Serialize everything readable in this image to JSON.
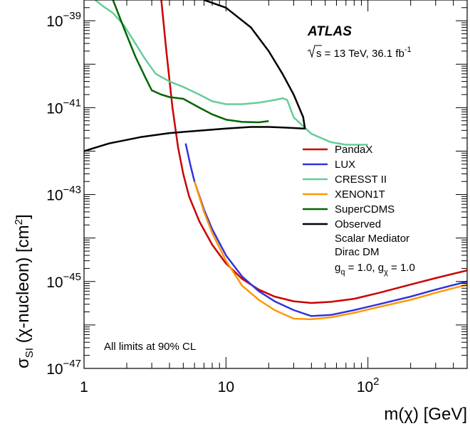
{
  "chart_data": {
    "type": "line",
    "xlabel": "m(χ) [GeV]",
    "ylabel": "σ_SI (χ-nucleon) [cm²]",
    "x_scale": "log",
    "y_scale": "log",
    "xlim": [
      1,
      500
    ],
    "ylim": [
      1e-47,
      3e-39
    ],
    "x_ticks": [
      {
        "value": 1,
        "label": "1"
      },
      {
        "value": 10,
        "label": "10"
      },
      {
        "value": 100,
        "label": "10",
        "exp": "2"
      }
    ],
    "y_ticks": [
      {
        "value": 1e-47,
        "base": "10",
        "exp": "−47"
      },
      {
        "value": 1e-45,
        "base": "10",
        "exp": "−45"
      },
      {
        "value": 1e-43,
        "base": "10",
        "exp": "−43"
      },
      {
        "value": 1e-41,
        "base": "10",
        "exp": "−41"
      },
      {
        "value": 1e-39,
        "base": "10",
        "exp": "−39"
      }
    ],
    "experiment": "ATLAS",
    "energy_text": "s = 13 TeV, 36.1 fb",
    "energy_sup": "-1",
    "model_lines": [
      "Scalar Mediator",
      "Dirac DM"
    ],
    "couplings": {
      "g": "g",
      "q": "q",
      "mid": " = 1.0, g",
      "chi": "χ",
      "end": " = 1.0"
    },
    "cl_note": "All limits at 90% CL",
    "series": [
      {
        "name": "PandaX",
        "color": "#cc0000",
        "x": [
          3.5,
          3.8,
          4.2,
          4.6,
          5.0,
          5.5,
          6.5,
          8,
          10,
          13,
          17,
          22,
          30,
          40,
          55,
          80,
          120,
          200,
          300,
          500
        ],
        "y": [
          3e-39,
          2e-40,
          1e-41,
          1.2e-42,
          3e-43,
          9e-44,
          2.4e-44,
          7e-45,
          2.6e-45,
          1.15e-45,
          6.5e-46,
          4.5e-46,
          3.5e-46,
          3.2e-46,
          3.4e-46,
          4e-46,
          5.5e-46,
          8.5e-46,
          1.2e-45,
          1.8e-45
        ]
      },
      {
        "name": "LUX",
        "color": "#3333dd",
        "x": [
          5.2,
          5.6,
          6.0,
          7,
          8,
          10,
          13,
          17,
          22,
          30,
          40,
          55,
          80,
          120,
          200,
          300,
          500
        ],
        "y": [
          1.5e-42,
          5e-43,
          2e-43,
          4.5e-44,
          1.6e-44,
          4e-45,
          1.3e-45,
          6e-46,
          3.5e-46,
          2.2e-46,
          1.6e-46,
          1.7e-46,
          2.2e-46,
          3e-46,
          4.5e-46,
          6.5e-46,
          1e-45
        ]
      },
      {
        "name": "CRESST II",
        "color": "#66cc99",
        "x": [
          1.2,
          1.35,
          1.6,
          1.9,
          2.3,
          2.7,
          3.2,
          4,
          5,
          6.5,
          8,
          10,
          13,
          17,
          22,
          25,
          27,
          30,
          40,
          55,
          70,
          100
        ],
        "y": [
          3e-39,
          2.2e-39,
          1.5e-39,
          8e-40,
          3e-40,
          1.3e-40,
          6e-41,
          4e-41,
          3e-41,
          2e-41,
          1.4e-41,
          1.2e-41,
          1.2e-41,
          1.3e-41,
          1.5e-41,
          1.65e-41,
          1.5e-41,
          6e-42,
          2.5e-42,
          1.6e-42,
          1.4e-42,
          1.4e-42
        ]
      },
      {
        "name": "XENON1T",
        "color": "#ff9900",
        "x": [
          6.0,
          7,
          8,
          10,
          13,
          17,
          22,
          30,
          40,
          55,
          80,
          120,
          200,
          300,
          500
        ],
        "y": [
          2e-43,
          4e-44,
          1.3e-44,
          3e-45,
          8e-46,
          3.8e-46,
          2.2e-46,
          1.4e-46,
          1.35e-46,
          1.5e-46,
          1.9e-46,
          2.6e-46,
          3.8e-46,
          5.5e-46,
          8.5e-46
        ]
      },
      {
        "name": "SuperCDMS",
        "color": "#006600",
        "x": [
          1.6,
          1.9,
          2.3,
          2.7,
          3.0,
          3.5,
          4.0,
          5,
          6.5,
          8,
          10,
          13,
          17,
          20
        ],
        "y": [
          3e-39,
          7e-40,
          1.5e-40,
          5e-41,
          2.5e-41,
          2e-41,
          1.75e-41,
          1.6e-41,
          1e-41,
          7e-42,
          5.3e-42,
          4.7e-42,
          4.6e-42,
          4.9e-42
        ]
      },
      {
        "name": "Observed",
        "color": "#000000",
        "x": [
          1,
          1.5,
          2.5,
          4,
          6,
          10,
          15,
          20,
          25,
          30,
          35,
          36,
          35,
          30,
          25,
          20,
          15,
          10,
          7
        ],
        "y": [
          1e-42,
          1.5e-42,
          2.1e-42,
          2.6e-42,
          2.9e-42,
          3.3e-42,
          3.6e-42,
          3.6e-42,
          3.5e-42,
          3.4e-42,
          3.3e-42,
          3.3e-42,
          6e-42,
          2e-41,
          6e-41,
          2e-40,
          7e-40,
          2e-39,
          3e-39
        ]
      }
    ]
  }
}
